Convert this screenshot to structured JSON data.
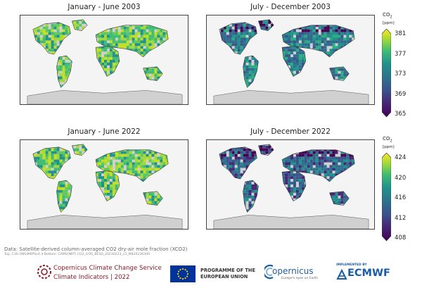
{
  "panels": [
    {
      "title": "January - June 2003"
    },
    {
      "title": "July - December 2003"
    },
    {
      "title": "January - June 2022"
    },
    {
      "title": "July - December 2022"
    }
  ],
  "colorbars": [
    {
      "label": "CO",
      "sub": "2",
      "unit": "[ppm]",
      "ticks": [
        "381",
        "377",
        "373",
        "369",
        "365"
      ]
    },
    {
      "label": "CO",
      "sub": "2",
      "unit": "[ppm]",
      "ticks": [
        "424",
        "420",
        "416",
        "412",
        "408"
      ]
    }
  ],
  "source_note": "Data: Satellite-derived column-averaged CO2 dry-air mole fraction (XCO2)",
  "version_note": "Top: C3S-OBS4MIPSv4.4  Bottom: CAMS(NRT) CO2_GOS_BESD_20230223_v1_M820230309",
  "footer": {
    "c3s_name": "Copernicus Climate Change Service",
    "c3s_sub": "Climate Indicators | 2022",
    "programme": "PROGRAMME OF THE EUROPEAN UNION",
    "copernicus": "opernicus",
    "copernicus_tag": "Europe's eyes on Earth",
    "implemented": "IMPLEMENTED BY",
    "ecmwf": "ECMWF"
  },
  "colors": {
    "land_nodata": "#d0d0d0",
    "ocean": "#f4f4f4",
    "viridis_low": "#440154",
    "viridis_high": "#fde725",
    "c3s_red": "#8a1c2c",
    "eu_blue": "#003399",
    "ecmwf_blue": "#1a5ca8"
  }
}
